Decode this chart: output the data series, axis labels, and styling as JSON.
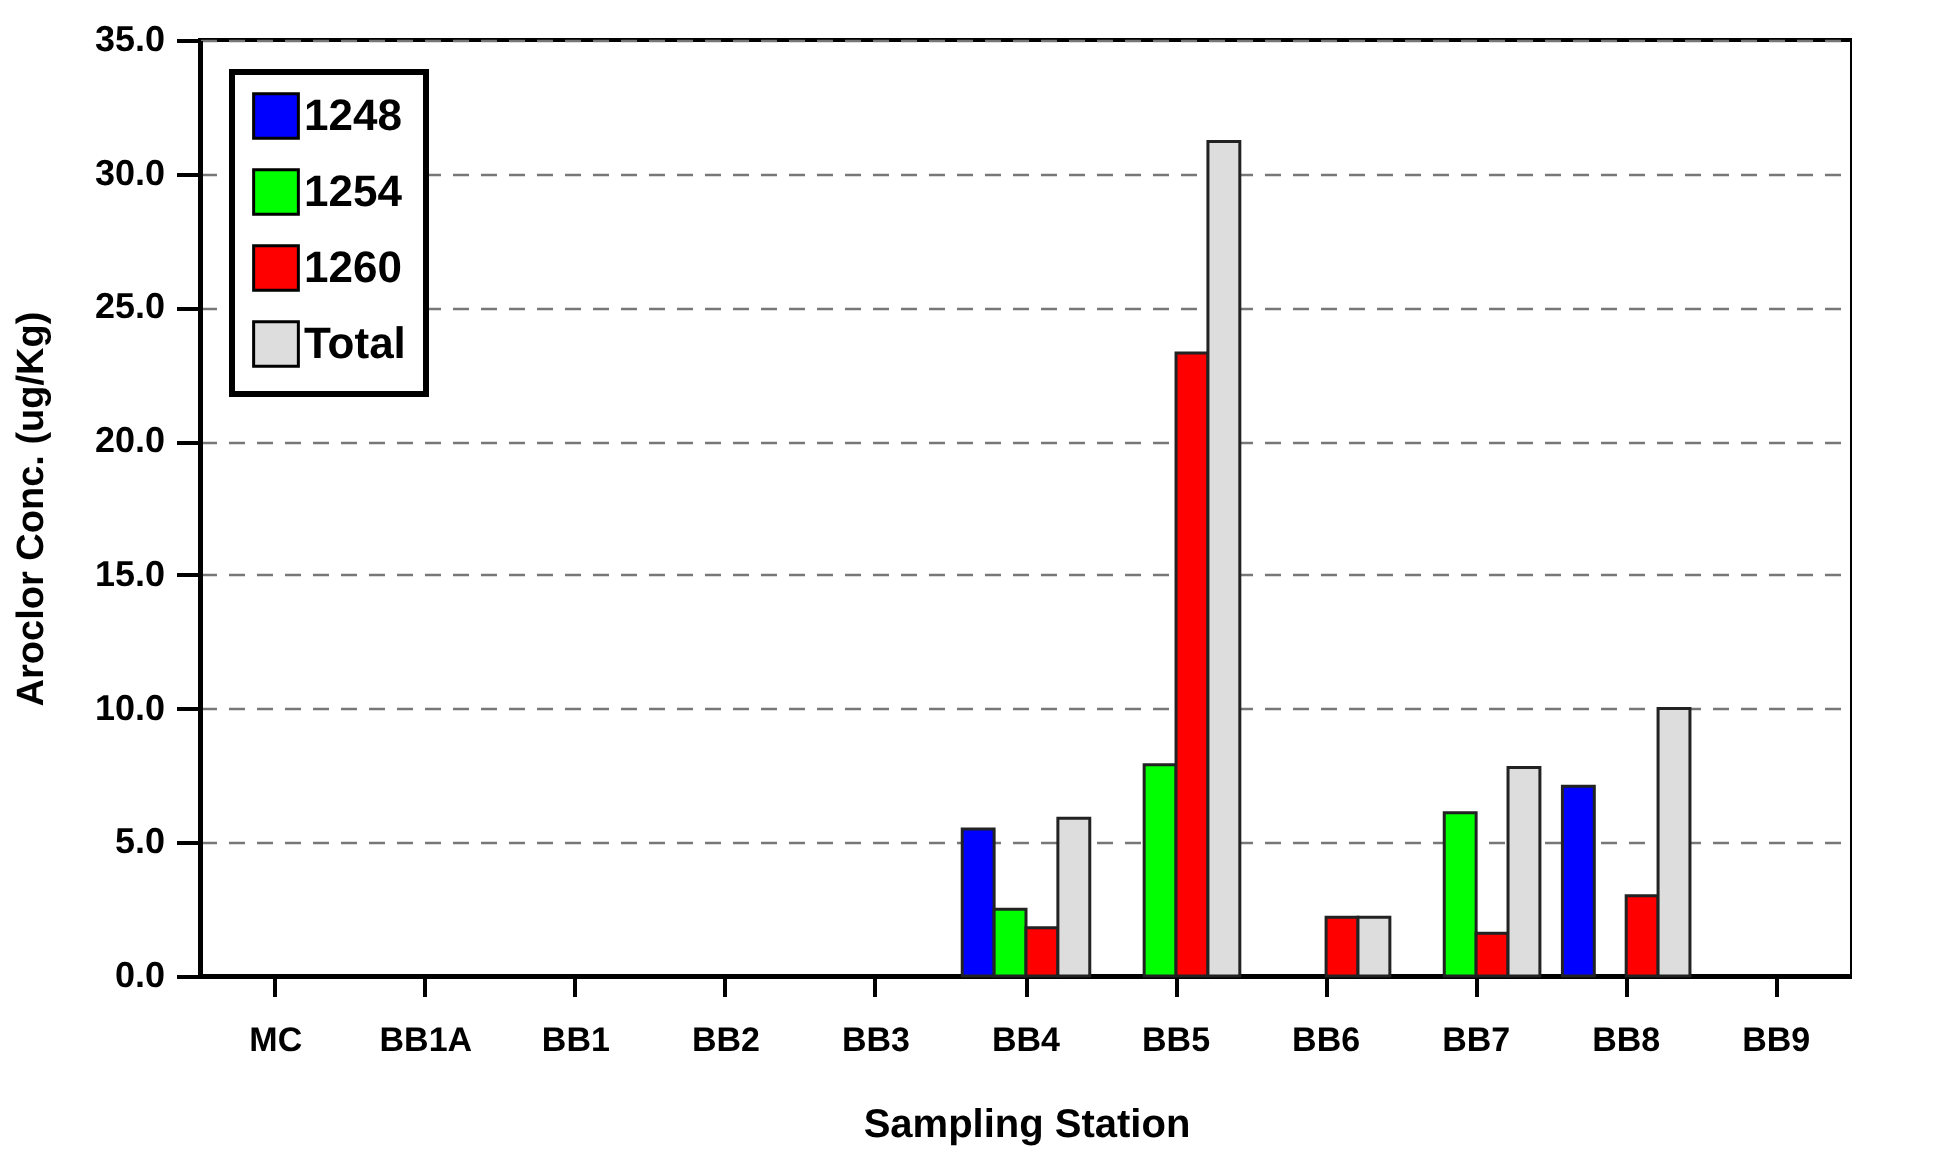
{
  "chart_data": {
    "type": "bar",
    "xlabel": "Sampling Station",
    "ylabel": "Aroclor Conc. (ug/Kg)",
    "categories": [
      "MC",
      "BB1A",
      "BB1",
      "BB2",
      "BB3",
      "BB4",
      "BB5",
      "BB6",
      "BB7",
      "BB8",
      "BB9"
    ],
    "series": [
      {
        "name": "1248",
        "color": "#0000ff",
        "values": [
          null,
          null,
          null,
          null,
          null,
          5.5,
          null,
          null,
          null,
          7.1,
          null
        ]
      },
      {
        "name": "1254",
        "color": "#00ff00",
        "values": [
          null,
          null,
          null,
          null,
          null,
          2.5,
          7.9,
          null,
          6.1,
          null,
          null
        ]
      },
      {
        "name": "1260",
        "color": "#ff0000",
        "values": [
          null,
          null,
          null,
          null,
          null,
          1.8,
          23.3,
          2.2,
          1.6,
          3.0,
          null
        ]
      },
      {
        "name": "Total",
        "color": "#dddddd",
        "values": [
          null,
          null,
          null,
          null,
          null,
          5.9,
          31.2,
          2.2,
          7.8,
          10.0,
          null
        ]
      }
    ],
    "ylim": [
      0,
      35
    ],
    "yticks": [
      {
        "value": 0,
        "label": "0.0"
      },
      {
        "value": 5,
        "label": "5.0"
      },
      {
        "value": 10,
        "label": "10.0"
      },
      {
        "value": 15,
        "label": "15.0"
      },
      {
        "value": 20,
        "label": "20.0"
      },
      {
        "value": 25,
        "label": "25.0"
      },
      {
        "value": 30,
        "label": "30.0"
      },
      {
        "value": 35,
        "label": "35.0"
      }
    ],
    "grid": "y",
    "legend": "top left"
  }
}
